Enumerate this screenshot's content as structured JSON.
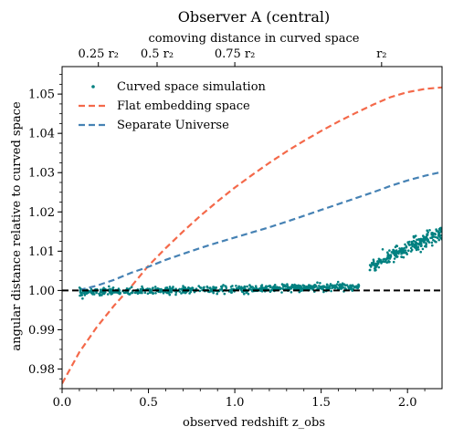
{
  "chart_data": {
    "type": "line",
    "title": "Observer A (central)",
    "top_axis": {
      "label": "comoving distance in curved space",
      "ticks": [
        {
          "x": 0.21,
          "label": "0.25 r₂"
        },
        {
          "x": 0.55,
          "label": "0.5 r₂"
        },
        {
          "x": 1.0,
          "label": "0.75 r₂"
        },
        {
          "x": 1.85,
          "label": "r₂"
        }
      ]
    },
    "xlabel": "observed redshift z_obs",
    "ylabel": "angular distance relative to curved space",
    "xlim": [
      0.0,
      2.2
    ],
    "ylim": [
      0.975,
      1.057
    ],
    "xticks": [
      {
        "v": 0.0,
        "label": "0.0"
      },
      {
        "v": 0.5,
        "label": "0.5"
      },
      {
        "v": 1.0,
        "label": "1.0"
      },
      {
        "v": 1.5,
        "label": "1.5"
      },
      {
        "v": 2.0,
        "label": "2.0"
      }
    ],
    "yticks": [
      {
        "v": 0.98,
        "label": "0.98"
      },
      {
        "v": 0.99,
        "label": "0.99"
      },
      {
        "v": 1.0,
        "label": "1.00"
      },
      {
        "v": 1.01,
        "label": "1.01"
      },
      {
        "v": 1.02,
        "label": "1.02"
      },
      {
        "v": 1.03,
        "label": "1.03"
      },
      {
        "v": 1.04,
        "label": "1.04"
      },
      {
        "v": 1.05,
        "label": "1.05"
      }
    ],
    "legend_position": "top-left",
    "reference_line": {
      "y": 1.0,
      "color": "#000000",
      "style": "dashed"
    },
    "series": [
      {
        "name": "Curved space simulation",
        "kind": "scatter",
        "color": "#008080",
        "segments": [
          {
            "x_range": [
              0.1,
              1.72
            ],
            "y_trend": [
              0.9995,
              1.001
            ],
            "spread": 0.0009
          },
          {
            "x_range": [
              1.78,
              2.2
            ],
            "y_trend": [
              1.006,
              1.015
            ],
            "spread": 0.0018
          }
        ]
      },
      {
        "name": "Flat embedding space",
        "kind": "line",
        "color": "#f4694a",
        "style": "dashed",
        "x": [
          0.0,
          0.1,
          0.2,
          0.3,
          0.4,
          0.5,
          0.6,
          0.7,
          0.8,
          0.9,
          1.0,
          1.1,
          1.2,
          1.3,
          1.4,
          1.5,
          1.6,
          1.7,
          1.8,
          1.9,
          2.0,
          2.1,
          2.2
        ],
        "y": [
          0.9763,
          0.9843,
          0.9906,
          0.9961,
          1.001,
          1.0063,
          1.0108,
          1.015,
          1.019,
          1.0227,
          1.0262,
          1.0294,
          1.0325,
          1.0354,
          1.0381,
          1.0406,
          1.043,
          1.0452,
          1.0473,
          1.0492,
          1.0505,
          1.0513,
          1.0517
        ]
      },
      {
        "name": "Separate Universe",
        "kind": "line",
        "color": "#4682b4",
        "style": "dashed",
        "x": [
          0.1,
          0.2,
          0.3,
          0.4,
          0.5,
          0.6,
          0.7,
          0.8,
          0.9,
          1.0,
          1.1,
          1.2,
          1.3,
          1.4,
          1.5,
          1.6,
          1.7,
          1.8,
          1.9,
          2.0,
          2.1,
          2.2
        ],
        "y": [
          1.0001,
          1.0012,
          1.0027,
          1.0045,
          1.006,
          1.0078,
          1.0093,
          1.0108,
          1.0122,
          1.0135,
          1.0148,
          1.0161,
          1.0175,
          1.019,
          1.0205,
          1.022,
          1.0235,
          1.025,
          1.0266,
          1.028,
          1.0292,
          1.0302
        ]
      }
    ]
  }
}
